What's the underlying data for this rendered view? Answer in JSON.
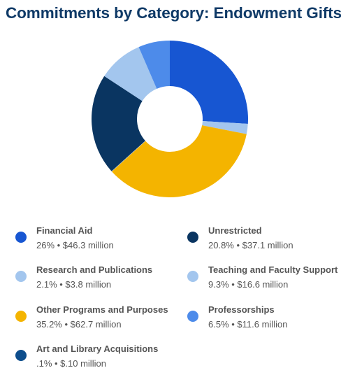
{
  "chart_data": {
    "type": "pie",
    "title": "Commitments by Category: Endowment Gifts",
    "donut": true,
    "slices": [
      {
        "label": "Financial Aid",
        "percent": 26,
        "amount_text": "$46.3 million",
        "value_text": "26% • $46.3 million",
        "color": "#1756d2"
      },
      {
        "label": "Research and Publications",
        "percent": 2.1,
        "amount_text": "$3.8 million",
        "value_text": "2.1% • $3.8 million",
        "color": "#a3c6ee"
      },
      {
        "label": "Other Programs and Purposes",
        "percent": 35.2,
        "amount_text": "$62.7 million",
        "value_text": "35.2% • $62.7 million",
        "color": "#f4b400"
      },
      {
        "label": "Art and Library Acquisitions",
        "percent": 0.1,
        "amount_text": "$.10 million",
        "value_text": ".1% • $.10 million",
        "color": "#0d4d8c"
      },
      {
        "label": "Unrestricted",
        "percent": 20.8,
        "amount_text": "$37.1 million",
        "value_text": "20.8% • $37.1 million",
        "color": "#0a3561"
      },
      {
        "label": "Teaching and Faculty Support",
        "percent": 9.3,
        "amount_text": "$16.6 million",
        "value_text": "9.3% • $16.6 million",
        "color": "#a3c6ee"
      },
      {
        "label": "Professorships",
        "percent": 6.5,
        "amount_text": "$11.6 million",
        "value_text": "6.5% • $11.6 million",
        "color": "#4d8bea"
      }
    ],
    "legend_order": [
      "Financial Aid",
      "Unrestricted",
      "Research and Publications",
      "Teaching and Faculty Support",
      "Other Programs and Purposes",
      "Professorships",
      "Art and Library Acquisitions"
    ],
    "legend_placement": "bottom"
  }
}
